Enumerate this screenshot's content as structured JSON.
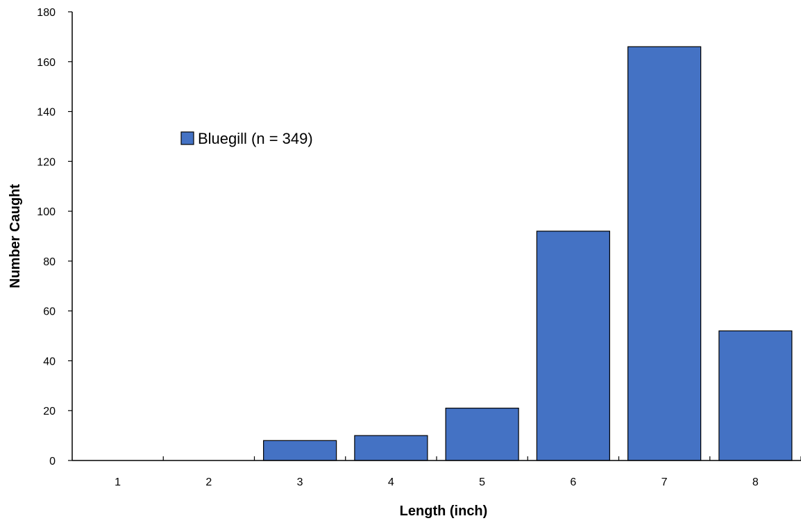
{
  "chart_data": {
    "type": "bar",
    "categories": [
      "1",
      "2",
      "3",
      "4",
      "5",
      "6",
      "7",
      "8"
    ],
    "series": [
      {
        "name": "Bluegill (n = 349)",
        "values": [
          0,
          0,
          8,
          10,
          21,
          92,
          166,
          52
        ]
      }
    ],
    "title": "",
    "xlabel": "Length (inch)",
    "ylabel": "Number Caught",
    "ylim": [
      0,
      180
    ],
    "yticks": [
      0,
      20,
      40,
      60,
      80,
      100,
      120,
      140,
      160,
      180
    ],
    "grid": false,
    "legend_position": "upper-left inside plot"
  },
  "colors": {
    "bar_fill": "#4472C4",
    "bar_stroke": "#000000",
    "axis": "#000000"
  }
}
